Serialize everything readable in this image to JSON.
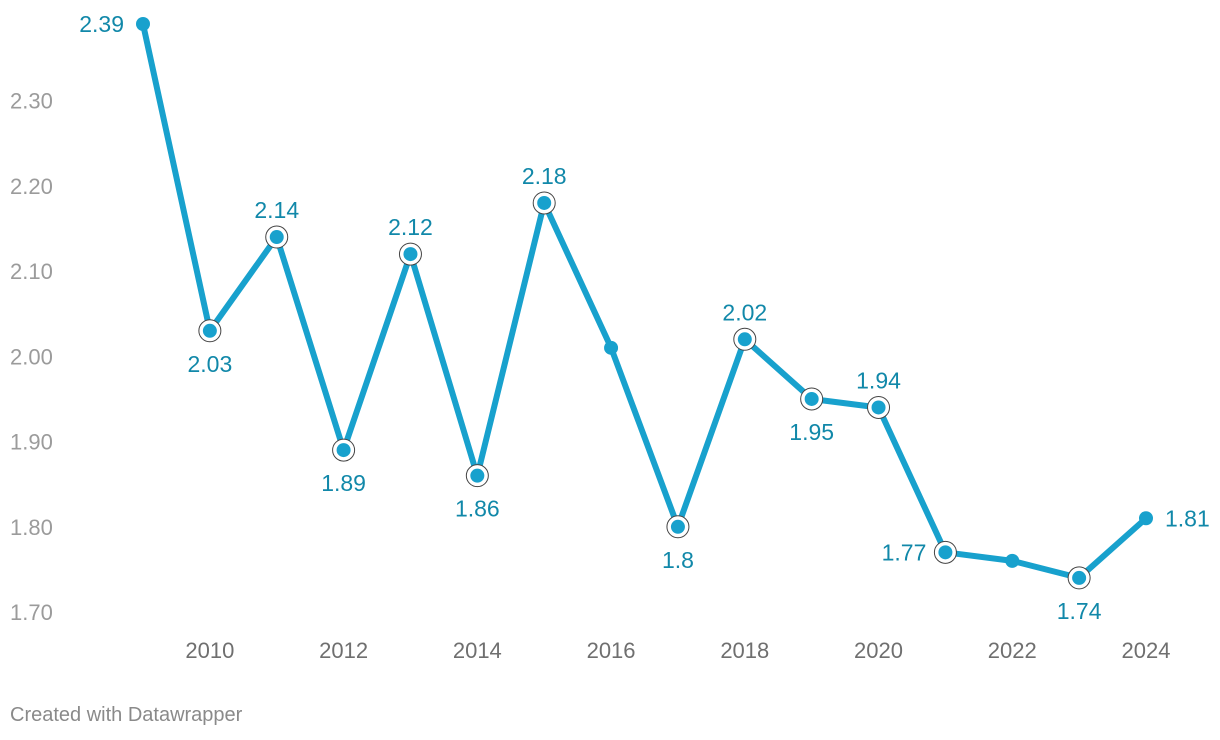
{
  "chart_data": {
    "type": "line",
    "title": "",
    "xlabel": "",
    "ylabel": "",
    "x": [
      2009,
      2010,
      2011,
      2012,
      2013,
      2014,
      2015,
      2016,
      2017,
      2018,
      2019,
      2020,
      2021,
      2022,
      2023,
      2024
    ],
    "values": [
      2.39,
      2.03,
      2.14,
      1.89,
      2.12,
      1.86,
      2.18,
      2.01,
      1.8,
      2.02,
      1.95,
      1.94,
      1.77,
      1.76,
      1.74,
      1.81
    ],
    "data_labels": [
      "2.39",
      "2.03",
      "2.14",
      "1.89",
      "2.12",
      "1.86",
      "2.18",
      "",
      "1.8",
      "2.02",
      "1.95",
      "1.94",
      "1.77",
      "",
      "1.74",
      "1.81"
    ],
    "highlighted": [
      false,
      true,
      true,
      true,
      true,
      true,
      true,
      false,
      true,
      true,
      true,
      true,
      true,
      false,
      true,
      false
    ],
    "label_position": [
      "left",
      "below",
      "above",
      "below",
      "above",
      "below",
      "above",
      "",
      "below",
      "above",
      "below",
      "above",
      "left",
      "",
      "below",
      "right"
    ],
    "ylim": [
      1.7,
      2.39
    ],
    "yticks": [
      "1.70",
      "1.80",
      "1.90",
      "2.00",
      "2.10",
      "2.20",
      "2.30"
    ],
    "xticks": [
      "2010",
      "2012",
      "2014",
      "2016",
      "2018",
      "2020",
      "2022",
      "2024"
    ],
    "grid": false,
    "colors": {
      "line": "#18a1cd",
      "label": "#1188a9",
      "ring": "#444444"
    }
  },
  "footer": "Created with Datawrapper"
}
